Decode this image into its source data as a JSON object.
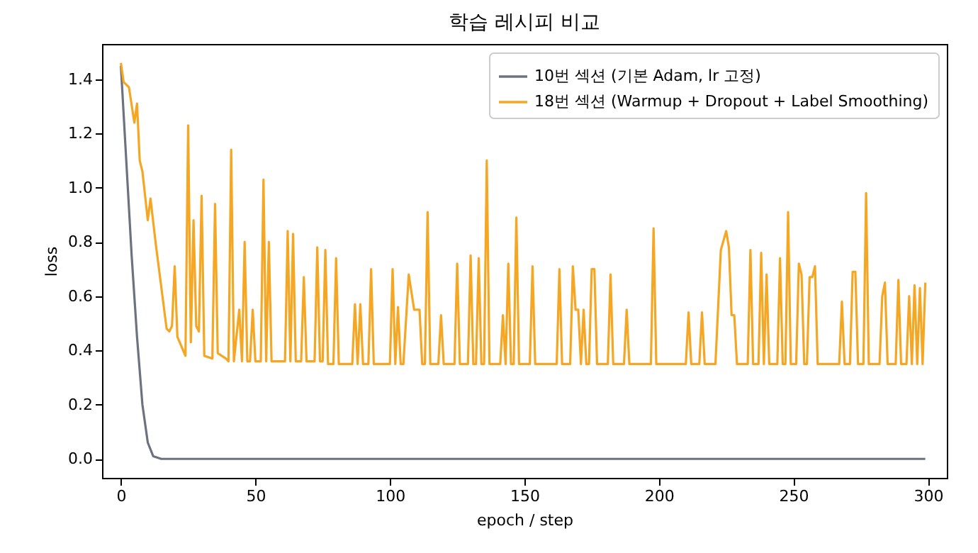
{
  "chart_data": {
    "type": "line",
    "title": "학습 레시피 비교",
    "xlabel": "epoch / step",
    "ylabel": "loss",
    "xlim": [
      -7,
      307
    ],
    "ylim": [
      -0.07,
      1.53
    ],
    "xticks": [
      0,
      50,
      100,
      150,
      200,
      250,
      300
    ],
    "yticks": [
      {
        "value": 0,
        "label": "0.0"
      },
      {
        "value": 0.2,
        "label": "0.2"
      },
      {
        "value": 0.4,
        "label": "0.4"
      },
      {
        "value": 0.6,
        "label": "0.6"
      },
      {
        "value": 0.8,
        "label": "0.8"
      },
      {
        "value": 1,
        "label": "1.0"
      },
      {
        "value": 1.2,
        "label": "1.2"
      },
      {
        "value": 1.4,
        "label": "1.4"
      }
    ],
    "grid": false,
    "legend": "top right",
    "marker": "none",
    "line_style": "solid",
    "series": [
      {
        "name": "10번 섹션 (기본 Adam, lr 고정)",
        "color": "#6b7280",
        "x": [
          0,
          2,
          4,
          6,
          8,
          10,
          12,
          15,
          299
        ],
        "values": [
          1.45,
          1.1,
          0.75,
          0.45,
          0.2,
          0.06,
          0.01,
          0,
          0
        ]
      },
      {
        "name": "18번 섹션 (Warmup + Dropout + Label Smoothing)",
        "color": "#f5a623",
        "x": [
          0,
          1,
          3,
          5,
          6,
          7,
          8,
          10,
          11,
          13,
          17,
          18,
          19,
          20,
          21,
          24,
          25,
          26,
          27,
          28,
          29,
          30,
          31,
          34,
          35,
          36,
          39,
          40,
          41,
          42,
          44,
          45,
          46,
          47,
          48,
          49,
          50,
          52,
          53,
          54,
          55,
          56,
          61,
          62,
          63,
          64,
          65,
          67,
          68,
          69,
          72,
          73,
          74,
          75,
          76,
          77,
          79,
          80,
          81,
          86,
          87,
          88,
          89,
          90,
          92,
          93,
          94,
          100,
          101,
          102,
          103,
          104,
          105,
          107,
          109,
          111,
          112,
          113,
          114,
          115,
          118,
          119,
          120,
          124,
          125,
          126,
          129,
          130,
          131,
          132,
          133,
          134,
          135,
          136,
          137,
          141,
          142,
          143,
          144,
          145,
          146,
          147,
          148,
          152,
          153,
          154,
          162,
          163,
          164,
          167,
          168,
          169,
          170,
          171,
          172,
          173,
          174,
          175,
          176,
          177,
          181,
          182,
          183,
          187,
          188,
          189,
          197,
          198,
          199,
          210,
          211,
          212,
          215,
          216,
          217,
          221,
          223,
          225,
          226,
          227,
          228,
          229,
          233,
          234,
          235,
          237,
          238,
          239,
          240,
          241,
          244,
          245,
          246,
          247,
          248,
          249,
          251,
          252,
          253,
          254,
          255,
          256,
          257,
          258,
          259,
          267,
          268,
          269,
          271,
          272,
          273,
          274,
          276,
          277,
          278,
          282,
          283,
          284,
          285,
          288,
          289,
          290,
          292,
          293,
          294,
          295,
          296,
          297,
          298,
          299
        ],
        "values": [
          1.46,
          1.39,
          1.37,
          1.24,
          1.31,
          1.1,
          1.06,
          0.88,
          0.96,
          0.79,
          0.48,
          0.47,
          0.49,
          0.71,
          0.45,
          0.38,
          1.23,
          0.43,
          0.88,
          0.49,
          0.47,
          0.97,
          0.38,
          0.37,
          0.94,
          0.39,
          0.37,
          0.36,
          1.14,
          0.36,
          0.55,
          0.36,
          0.8,
          0.36,
          0.36,
          0.55,
          0.36,
          0.36,
          1.03,
          0.36,
          0.8,
          0.36,
          0.36,
          0.84,
          0.36,
          0.83,
          0.36,
          0.36,
          0.67,
          0.36,
          0.36,
          0.78,
          0.36,
          0.36,
          0.77,
          0.35,
          0.35,
          0.74,
          0.35,
          0.35,
          0.57,
          0.35,
          0.57,
          0.35,
          0.35,
          0.7,
          0.35,
          0.35,
          0.7,
          0.35,
          0.56,
          0.35,
          0.35,
          0.68,
          0.55,
          0.55,
          0.35,
          0.35,
          0.91,
          0.35,
          0.35,
          0.53,
          0.35,
          0.35,
          0.72,
          0.35,
          0.35,
          0.75,
          0.35,
          0.35,
          0.74,
          0.35,
          0.35,
          1.1,
          0.35,
          0.35,
          0.53,
          0.35,
          0.72,
          0.35,
          0.35,
          0.89,
          0.35,
          0.35,
          0.71,
          0.35,
          0.35,
          0.7,
          0.35,
          0.35,
          0.71,
          0.55,
          0.55,
          0.35,
          0.55,
          0.35,
          0.35,
          0.7,
          0.7,
          0.35,
          0.35,
          0.68,
          0.35,
          0.35,
          0.55,
          0.35,
          0.35,
          0.85,
          0.35,
          0.35,
          0.54,
          0.35,
          0.35,
          0.54,
          0.35,
          0.35,
          0.77,
          0.84,
          0.78,
          0.53,
          0.53,
          0.35,
          0.35,
          0.77,
          0.35,
          0.35,
          0.76,
          0.35,
          0.68,
          0.35,
          0.35,
          0.74,
          0.35,
          0.35,
          0.91,
          0.35,
          0.35,
          0.72,
          0.68,
          0.35,
          0.35,
          0.67,
          0.67,
          0.71,
          0.35,
          0.35,
          0.58,
          0.35,
          0.35,
          0.69,
          0.69,
          0.35,
          0.35,
          0.98,
          0.35,
          0.35,
          0.6,
          0.65,
          0.35,
          0.35,
          0.66,
          0.35,
          0.35,
          0.6,
          0.35,
          0.64,
          0.35,
          0.63,
          0.35,
          0.65
        ]
      }
    ]
  }
}
